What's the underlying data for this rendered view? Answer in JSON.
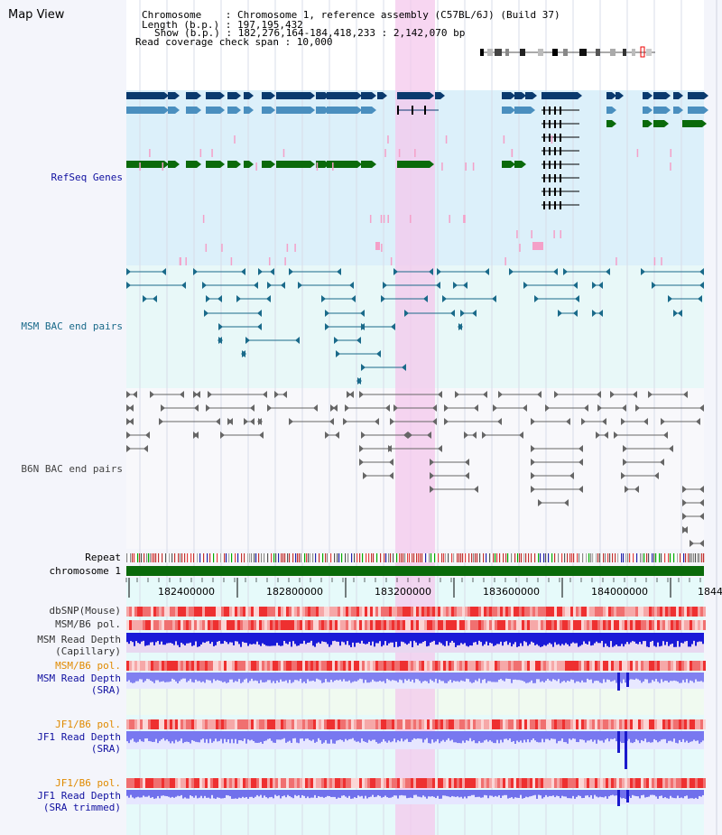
{
  "title": "Map View",
  "header": {
    "line1": "Chromosome    : Chromosome 1, reference assembly (C57BL/6J) (Build 37)",
    "line2": "Length (b.p.) : 197,195,432",
    "line3": "Show (b.p.) : 182,276,164-184,418,233 : 2,142,070 bp",
    "line4": "Read coverage check span : 10,000"
  },
  "tracks": {
    "refseq": "RefSeq Genes",
    "msm_bac": "MSM BAC end pairs",
    "b6n_bac": "B6N BAC end pairs",
    "repeat": "Repeat",
    "chromosome": "chromosome 1",
    "dbsnp": "dbSNP(Mouse)",
    "msm_b6_pol_1": "MSM/B6 pol.",
    "msm_read_depth_cap_1": "MSM Read Depth",
    "msm_read_depth_cap_2": "(Capillary)",
    "msm_b6_pol_2": "MSM/B6 pol.",
    "msm_read_depth_sra_1": "MSM Read Depth",
    "msm_read_depth_sra_2": "(SRA)",
    "jf1_b6_pol_1": "JF1/B6 pol.",
    "jf1_read_depth_1": "JF1 Read Depth",
    "jf1_read_depth_2": "(SRA)",
    "jf1_b6_pol_2": "JF1/B6 pol.",
    "jf1_read_depth_tr_1": "JF1 Read Depth",
    "jf1_read_depth_tr_2": "(SRA trimmed)"
  },
  "axis": {
    "ticks": [
      "182400000",
      "182800000",
      "183200000",
      "183600000",
      "184000000",
      "1844"
    ]
  },
  "colors": {
    "refseq_bg": "#dcf0fa",
    "msm_bg": "#e8f8f8",
    "gene_dark": "#0a3a6e",
    "gene_mid": "#4a8fbf",
    "gene_green": "#0a6a0a",
    "bac_teal": "#1a6a8a",
    "bac_gray": "#666666",
    "highlight": "#f4c8ec",
    "depth_blue": "#2020dd",
    "pol_red": "#f04040",
    "label_blue": "#1010a0",
    "label_orange": "#e08a00",
    "label_teal": "#1a6a8a"
  }
}
